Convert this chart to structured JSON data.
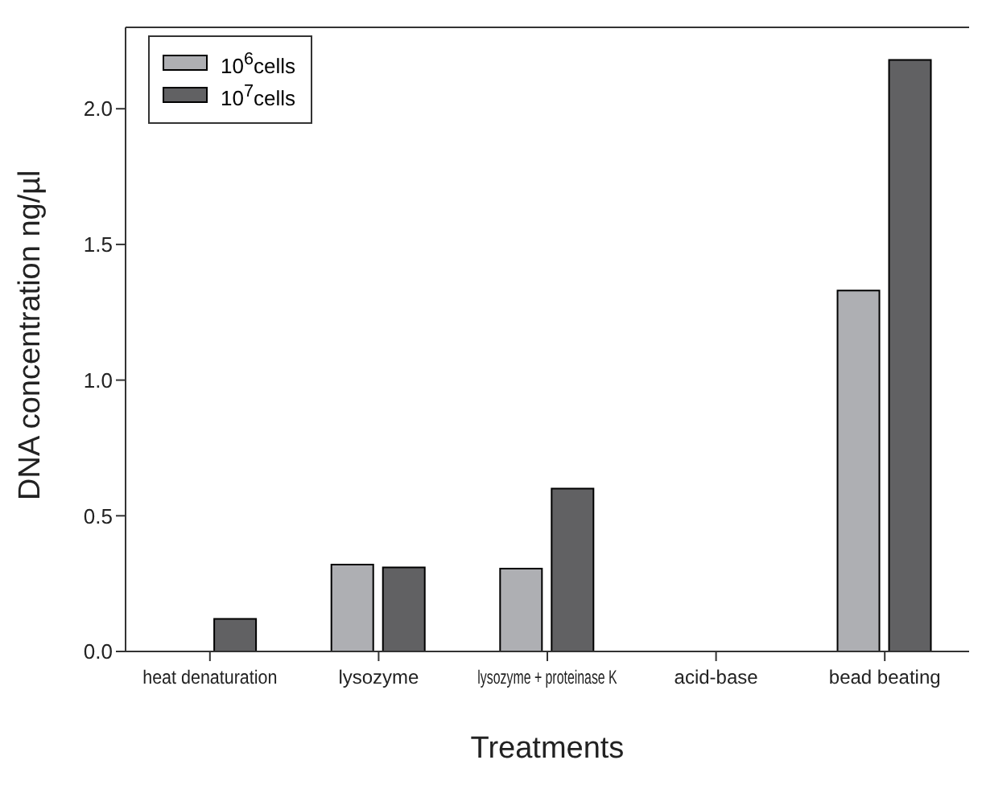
{
  "chart_data": {
    "type": "bar",
    "xlabel": "Treatments",
    "ylabel": "DNA concentration ng/µl",
    "categories": [
      "heat denaturation",
      "lysozyme",
      "lysozyme + proteinase K",
      "acid-base",
      "bead beating"
    ],
    "series": [
      {
        "name": "10$^{6}$cells",
        "color": "#aeafb3",
        "values": [
          null,
          0.32,
          0.305,
          null,
          1.33
        ]
      },
      {
        "name": "10$^{7}$cells",
        "color": "#616163",
        "values": [
          0.12,
          0.31,
          0.6,
          null,
          2.18
        ]
      }
    ],
    "ylim": [
      0,
      2.3
    ],
    "yticks": [
      {
        "value": 0,
        "label": "0.0"
      },
      {
        "value": 0.5,
        "label": "0.5"
      },
      {
        "value": 1,
        "label": "1.0"
      },
      {
        "value": 1.5,
        "label": "1.5"
      },
      {
        "value": 2,
        "label": "2.0"
      }
    ],
    "grid": false,
    "legend": "top left"
  }
}
